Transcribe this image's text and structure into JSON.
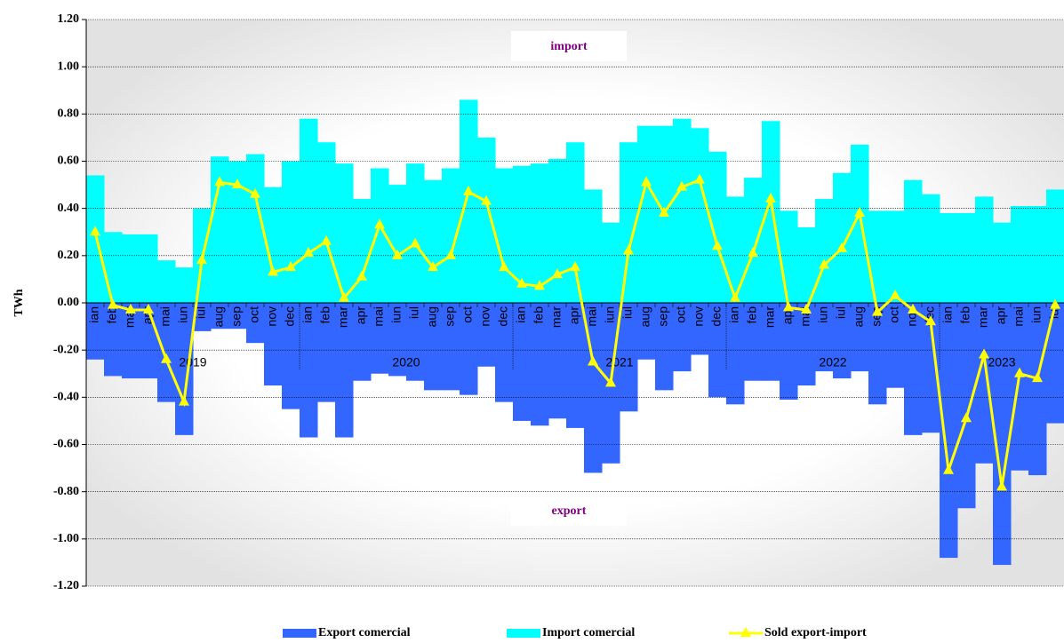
{
  "chart_data": {
    "type": "bar",
    "y_label": "TWh",
    "annotations": [
      "import",
      "export"
    ],
    "categories": [
      "ian",
      "feb",
      "mar",
      "apr",
      "mai",
      "iun",
      "iul",
      "aug",
      "sep",
      "oct",
      "nov",
      "dec",
      "ian",
      "feb",
      "mar",
      "apr",
      "mai",
      "iun",
      "iul",
      "aug",
      "sep",
      "oct",
      "nov",
      "dec",
      "ian",
      "feb",
      "mar",
      "apr",
      "mai",
      "iun",
      "iul",
      "aug",
      "sep",
      "oct",
      "nov",
      "dec",
      "ian",
      "feb",
      "mar",
      "apr",
      "mai",
      "iun",
      "iul",
      "aug",
      "sep",
      "oct",
      "nov",
      "dec",
      "ian",
      "feb",
      "mar",
      "apr",
      "mai",
      "iun",
      "iul"
    ],
    "years": [
      "2019",
      "2020",
      "2021",
      "2022",
      "2023"
    ],
    "series": [
      {
        "name": "Export comercial",
        "type": "bar",
        "color": "#3366ff",
        "values": [
          -0.24,
          -0.31,
          -0.32,
          -0.32,
          -0.42,
          -0.56,
          -0.12,
          -0.11,
          -0.11,
          -0.17,
          -0.35,
          -0.45,
          -0.57,
          -0.42,
          -0.57,
          -0.33,
          -0.3,
          -0.31,
          -0.33,
          -0.37,
          -0.37,
          -0.39,
          -0.27,
          -0.42,
          -0.5,
          -0.52,
          -0.49,
          -0.53,
          -0.72,
          -0.68,
          -0.46,
          -0.24,
          -0.37,
          -0.29,
          -0.22,
          -0.4,
          -0.43,
          -0.33,
          -0.33,
          -0.41,
          -0.35,
          -0.29,
          -0.32,
          -0.29,
          -0.43,
          -0.36,
          -0.56,
          -0.55,
          -1.08,
          -0.87,
          -0.68,
          -1.11,
          -0.71,
          -0.73,
          -0.51
        ]
      },
      {
        "name": "Import comercial",
        "type": "bar",
        "color": "#00ffff",
        "values": [
          0.54,
          0.3,
          0.29,
          0.29,
          0.18,
          0.15,
          0.4,
          0.62,
          0.6,
          0.63,
          0.49,
          0.6,
          0.78,
          0.68,
          0.59,
          0.44,
          0.57,
          0.5,
          0.59,
          0.52,
          0.57,
          0.86,
          0.7,
          0.57,
          0.58,
          0.59,
          0.61,
          0.68,
          0.48,
          0.34,
          0.68,
          0.75,
          0.75,
          0.78,
          0.74,
          0.64,
          0.45,
          0.53,
          0.77,
          0.39,
          0.32,
          0.44,
          0.55,
          0.67,
          0.39,
          0.39,
          0.52,
          0.46,
          0.38,
          0.38,
          0.45,
          0.34,
          0.41,
          0.41,
          0.48
        ]
      },
      {
        "name": "Sold export-import",
        "type": "line",
        "color": "#ffff00",
        "values": [
          0.3,
          -0.01,
          -0.03,
          -0.03,
          -0.24,
          -0.42,
          0.18,
          0.51,
          0.5,
          0.46,
          0.13,
          0.15,
          0.21,
          0.26,
          0.02,
          0.11,
          0.33,
          0.2,
          0.25,
          0.15,
          0.2,
          0.47,
          0.43,
          0.15,
          0.08,
          0.07,
          0.12,
          0.15,
          -0.25,
          -0.34,
          0.22,
          0.51,
          0.38,
          0.49,
          0.52,
          0.24,
          0.02,
          0.21,
          0.44,
          -0.02,
          -0.03,
          0.16,
          0.23,
          0.38,
          -0.04,
          0.03,
          -0.03,
          -0.08,
          -0.71,
          -0.49,
          -0.22,
          -0.78,
          -0.3,
          -0.32,
          -0.01
        ]
      }
    ],
    "ylim": [
      -1.2,
      1.2
    ],
    "yticks": [
      {
        "value": -1.2,
        "label": "-1.20"
      },
      {
        "value": -1.0,
        "label": "-1.00"
      },
      {
        "value": -0.8,
        "label": "-0.80"
      },
      {
        "value": -0.6,
        "label": "-0.60"
      },
      {
        "value": -0.4,
        "label": "-0.40"
      },
      {
        "value": -0.2,
        "label": "-0.20"
      },
      {
        "value": 0,
        "label": "0.00"
      },
      {
        "value": 0.2,
        "label": "0.20"
      },
      {
        "value": 0.4,
        "label": "0.40"
      },
      {
        "value": 0.6,
        "label": "0.60"
      },
      {
        "value": 0.8,
        "label": "0.80"
      },
      {
        "value": 1.0,
        "label": "1.00"
      },
      {
        "value": 1.2,
        "label": "1.20"
      }
    ],
    "grid": true,
    "legend": "bottom"
  }
}
